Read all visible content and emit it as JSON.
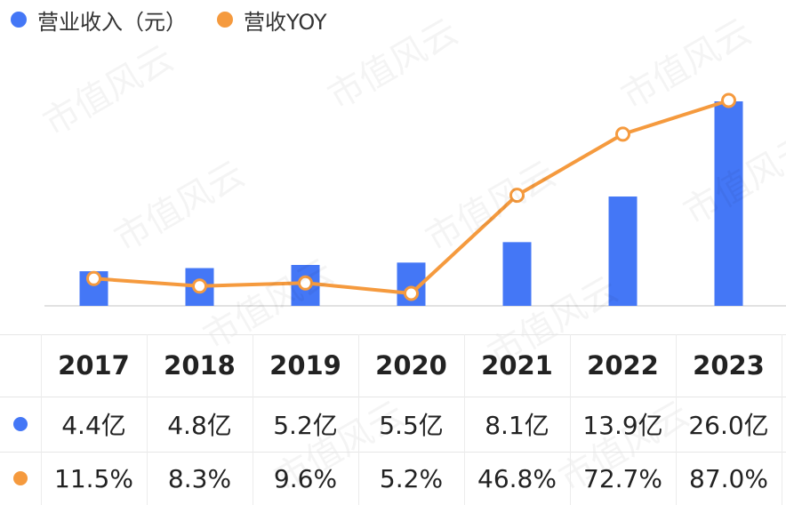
{
  "chart_data": {
    "type": "bar+line",
    "categories": [
      "2017",
      "2018",
      "2019",
      "2020",
      "2021",
      "2022",
      "2023"
    ],
    "series": [
      {
        "name": "营业收入（元）",
        "type": "bar",
        "values": [
          4.4,
          4.8,
          5.2,
          5.5,
          8.1,
          13.9,
          26.0
        ],
        "labels": [
          "4.4亿",
          "4.8亿",
          "5.2亿",
          "5.5亿",
          "8.1亿",
          "13.9亿",
          "26.0亿"
        ],
        "color": "#4477f6"
      },
      {
        "name": "营收YOY",
        "type": "line",
        "values": [
          11.5,
          8.3,
          9.6,
          5.2,
          46.8,
          72.7,
          87.0
        ],
        "labels": [
          "11.5%",
          "8.3%",
          "9.6%",
          "5.2%",
          "46.8%",
          "72.7%",
          "87.0%"
        ],
        "color": "#f59a3e"
      }
    ],
    "legend_position": "top-left",
    "grid": false
  },
  "watermark_text": "市值风云"
}
